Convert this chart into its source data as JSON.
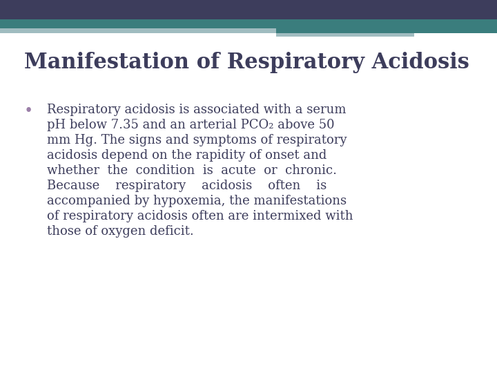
{
  "title": "Manifestation of Respiratory Acidosis",
  "title_color": "#3d3d5c",
  "title_fontsize": 22,
  "title_font": "DejaVu Serif",
  "bullet_color": "#9b7fa8",
  "text_color": "#3d3d5c",
  "text_fontsize": 13,
  "text_font": "DejaVu Serif",
  "bg_color": "#ffffff",
  "header_dark_color": "#3d3d5c",
  "header_teal_color": "#3a7d7d",
  "header_lightblue_color": "#a0bcc0",
  "body_text_lines": [
    "Respiratory acidosis is associated with a serum",
    "pH below 7.35 and an arterial PCO₂ above 50",
    "mm Hg. The signs and symptoms of respiratory",
    "acidosis depend on the rapidity of onset and",
    "whether  the  condition  is  acute  or  chronic.",
    "Because    respiratory    acidosis    often    is",
    "accompanied by hypoxemia, the manifestations",
    "of respiratory acidosis often are intermixed with",
    "those of oxygen deficit."
  ]
}
